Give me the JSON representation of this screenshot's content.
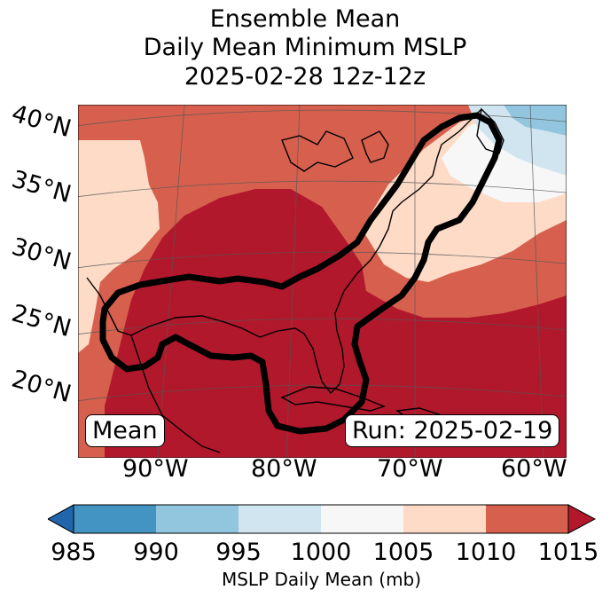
{
  "title": {
    "line1": "Ensemble Mean",
    "line2": "Daily Mean Minimum MSLP",
    "line3": "2025-02-28 12z-12z"
  },
  "map": {
    "lat_labels": [
      "40°N",
      "35°N",
      "30°N",
      "25°N",
      "20°N"
    ],
    "lon_labels": [
      "90°W",
      "80°W",
      "70°W",
      "60°W"
    ],
    "lat_range": [
      15,
      41
    ],
    "lon_range": [
      -98,
      -59
    ],
    "mean_label": "Mean",
    "run_label": "Run: 2025-02-19"
  },
  "colorbar": {
    "label": "MSLP Daily Mean (mb)",
    "ticks": [
      "985",
      "990",
      "995",
      "1000",
      "1005",
      "1010",
      "1015"
    ],
    "under_color": "#2166ac",
    "over_color": "#b2182b",
    "bins": [
      {
        "range": "985-990",
        "color": "#4393c3"
      },
      {
        "range": "990-995",
        "color": "#92c5de"
      },
      {
        "range": "995-1000",
        "color": "#d1e5f0"
      },
      {
        "range": "1000-1005",
        "color": "#f7f7f7"
      },
      {
        "range": "1005-1010",
        "color": "#fddbc7"
      },
      {
        "range": "1010-1015",
        "color": "#d6604d"
      }
    ]
  }
}
